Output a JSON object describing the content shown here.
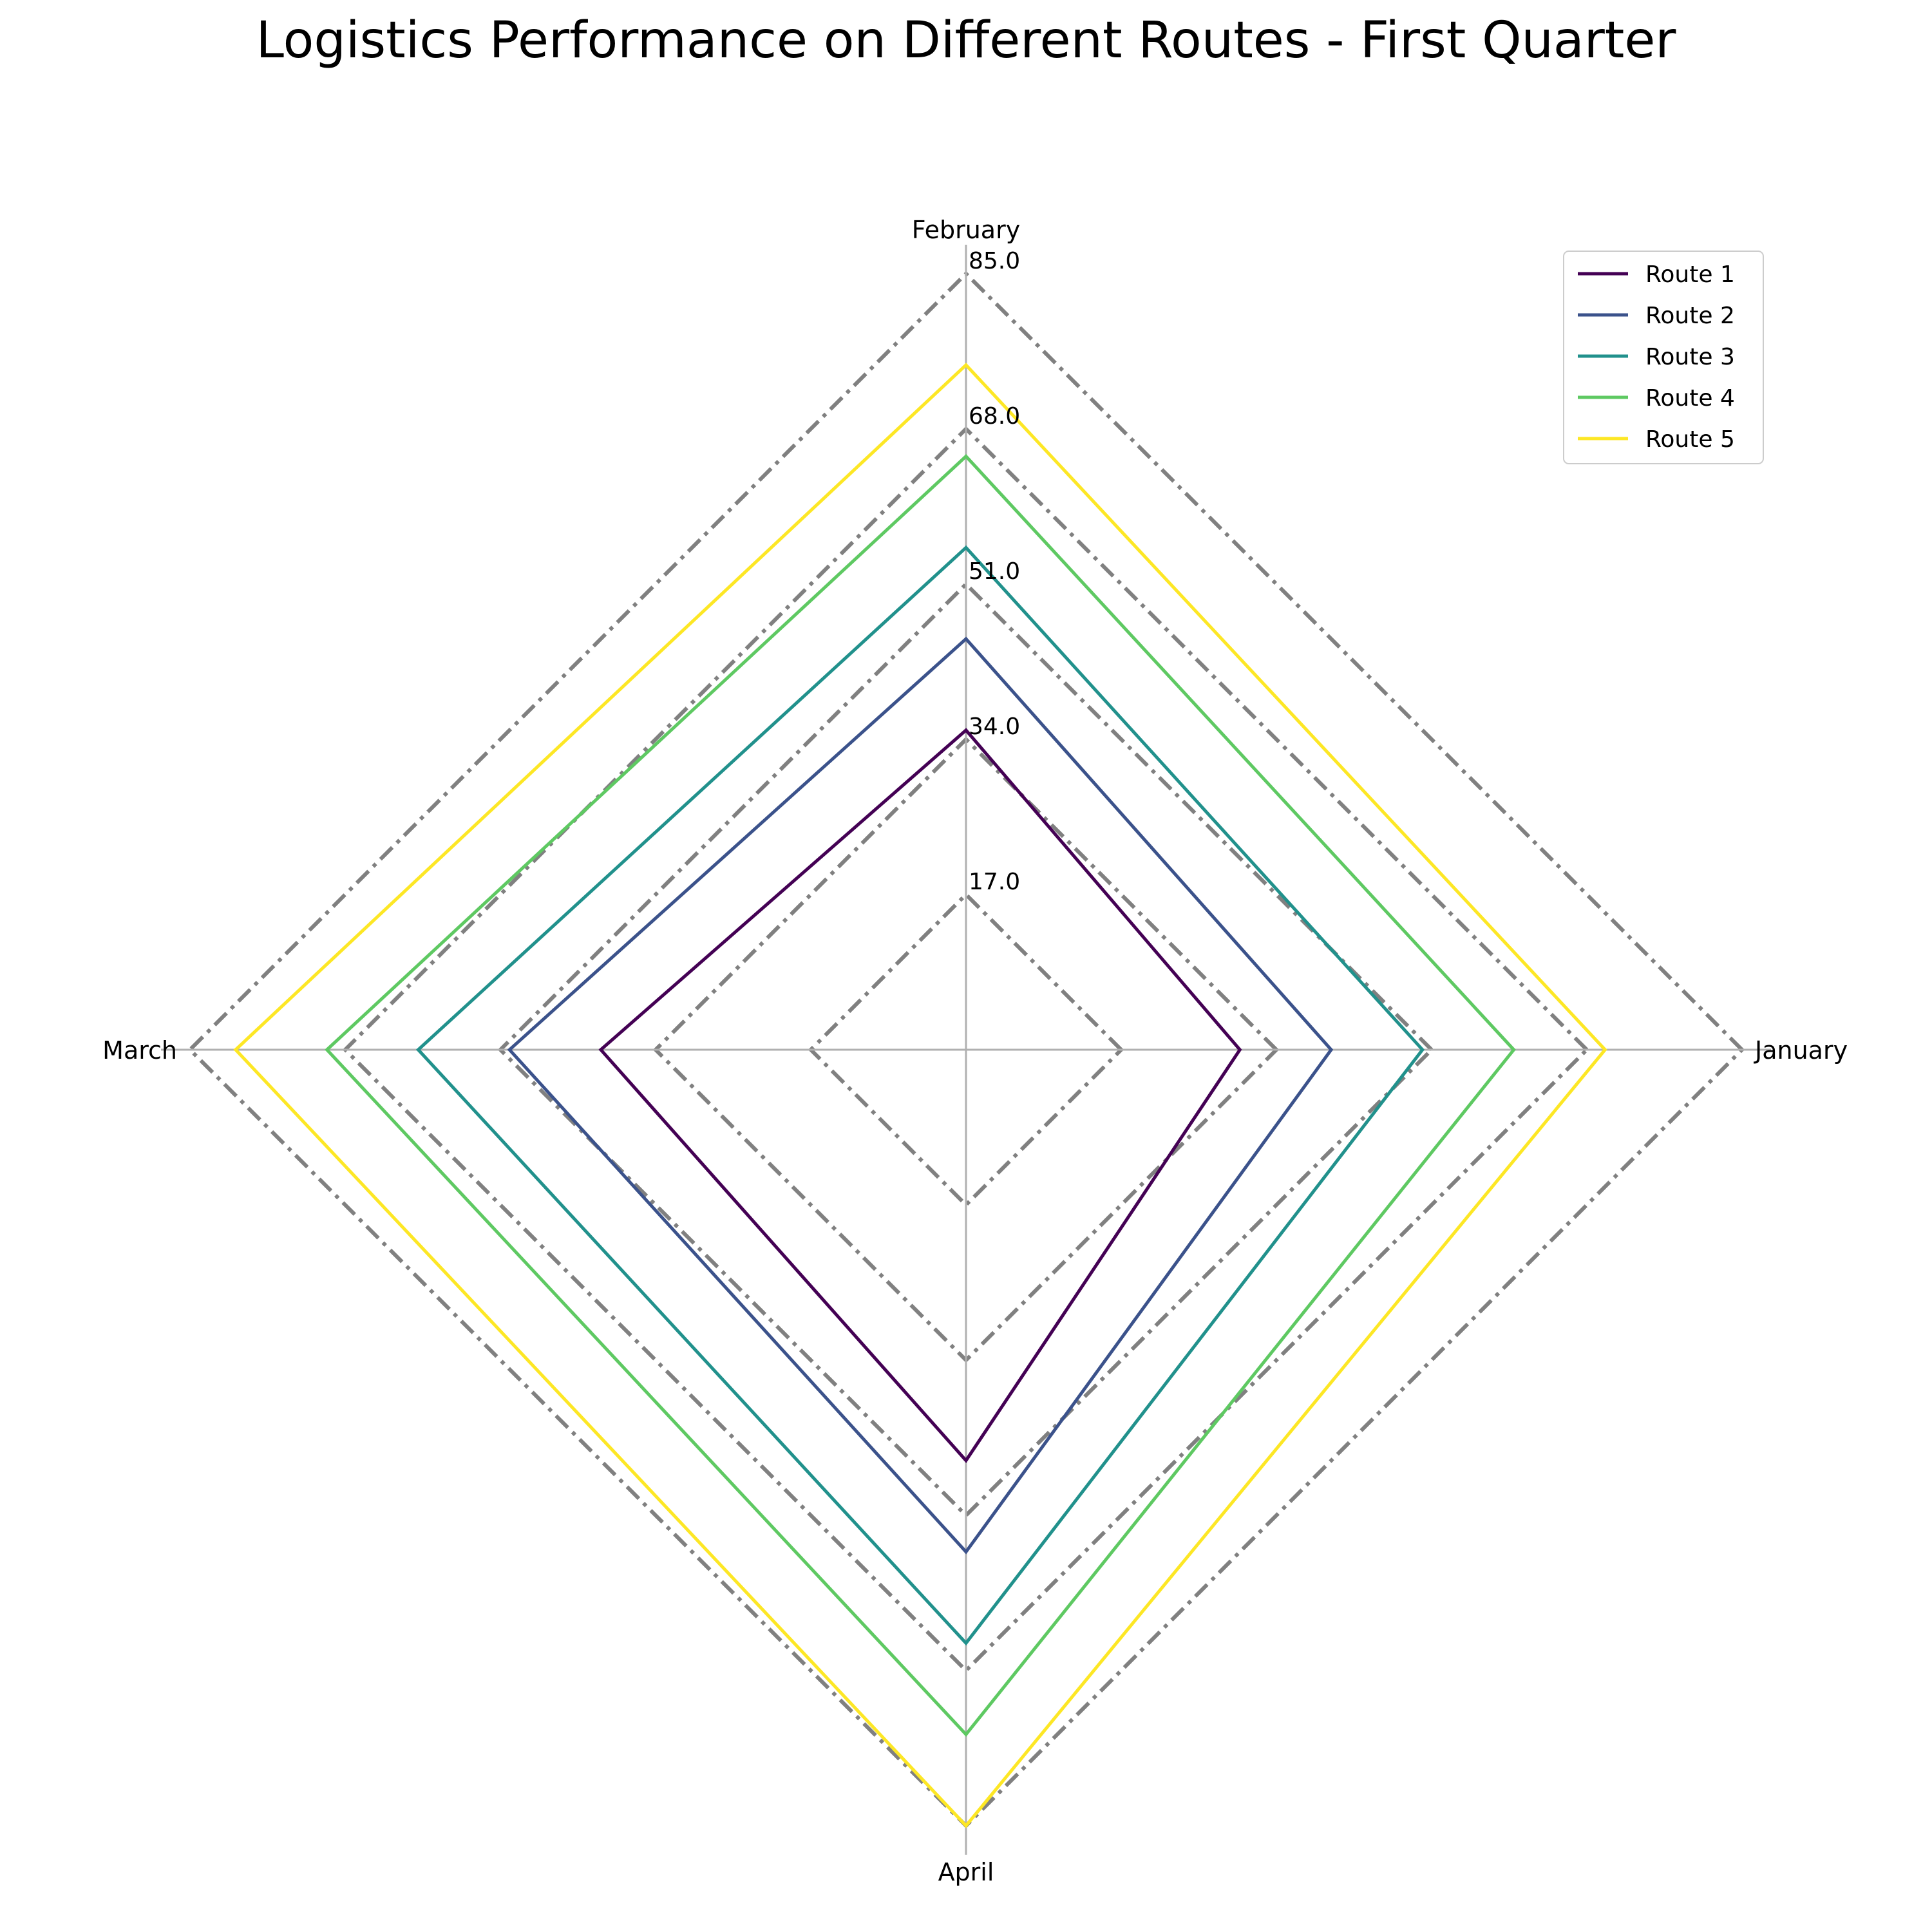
{
  "chart_data": {
    "type": "radar",
    "title": "Logistics Performance on Different Routes - First Quarter",
    "categories": [
      "January",
      "February",
      "March",
      "April"
    ],
    "rmax": 85,
    "tick_values": [
      17,
      34,
      51,
      68,
      85
    ],
    "tick_labels": [
      "17.0",
      "34.0",
      "51.0",
      "68.0",
      "85.0"
    ],
    "series": [
      {
        "name": "Route 1",
        "color": "#440154",
        "values": [
          30,
          35,
          40,
          45
        ]
      },
      {
        "name": "Route 2",
        "color": "#3b528b",
        "values": [
          40,
          45,
          50,
          55
        ]
      },
      {
        "name": "Route 3",
        "color": "#21918c",
        "values": [
          50,
          55,
          60,
          65
        ]
      },
      {
        "name": "Route 4",
        "color": "#5ec962",
        "values": [
          60,
          65,
          70,
          75
        ]
      },
      {
        "name": "Route 5",
        "color": "#fde725",
        "values": [
          70,
          75,
          80,
          85
        ]
      }
    ],
    "grid": true,
    "grid_style": "dash-dot",
    "legend_position": "top-right"
  }
}
